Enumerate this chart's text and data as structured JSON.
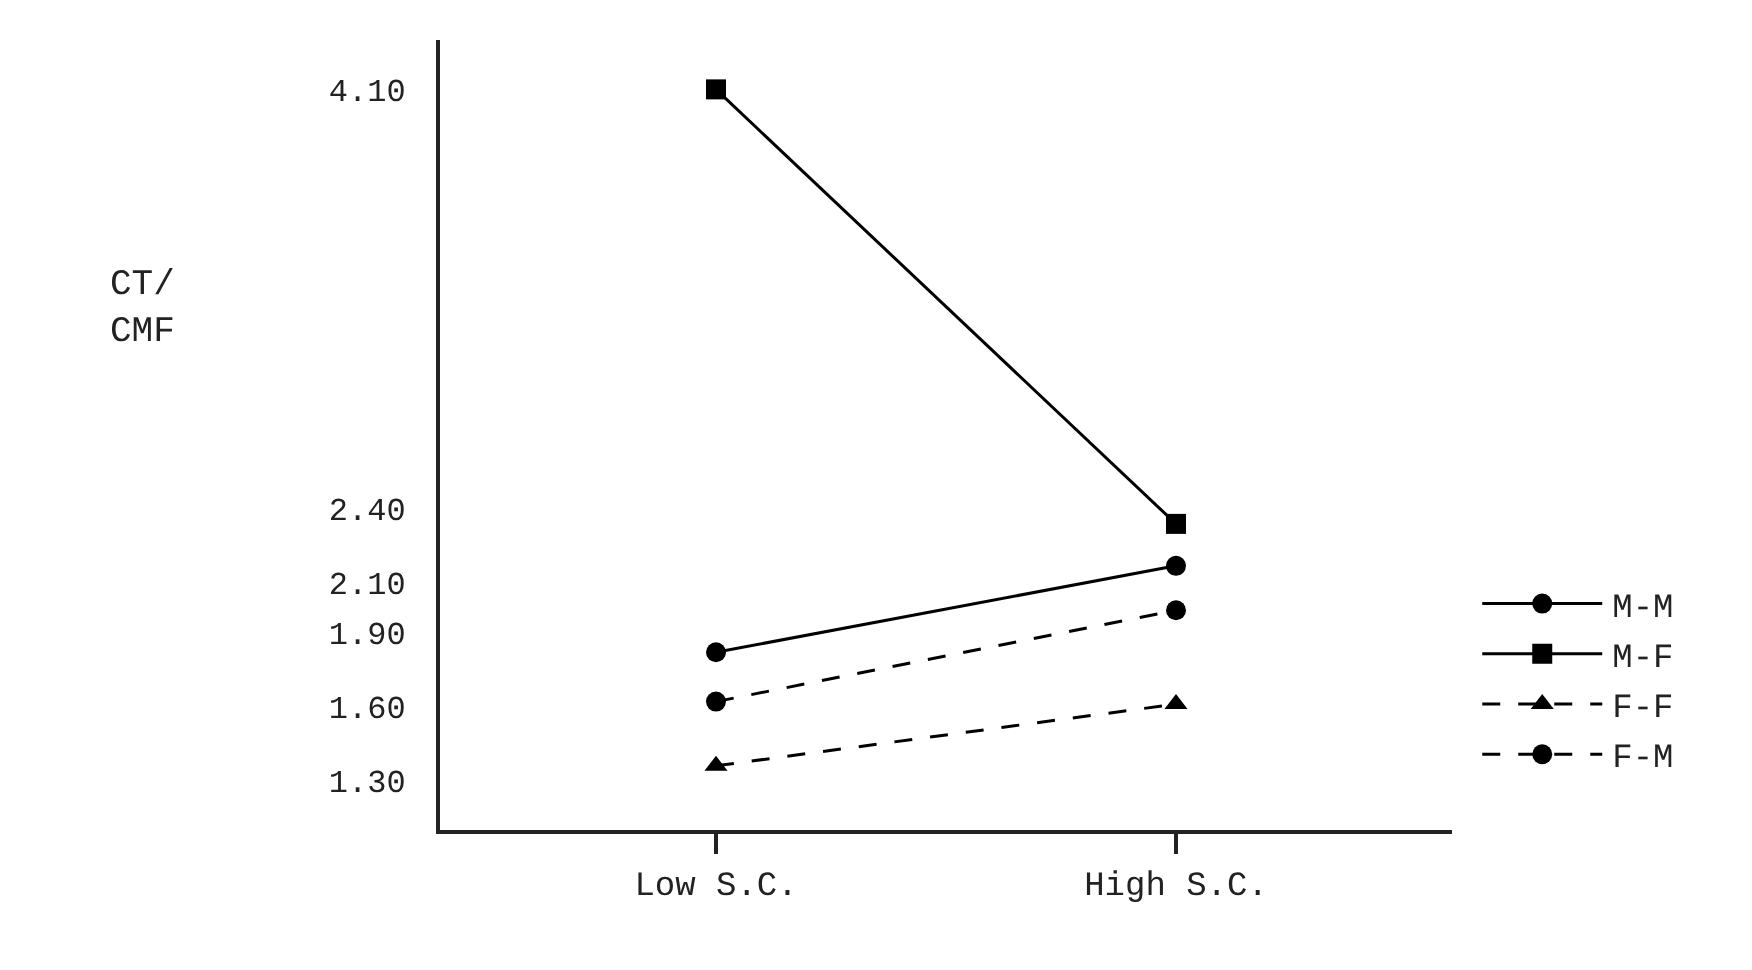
{
  "chart_data": {
    "type": "line",
    "annotations": [
      "CT/\nCMF"
    ],
    "categories": [
      "Low S.C.",
      "High S.C."
    ],
    "series": [
      {
        "name": "M-M",
        "color": "#000000",
        "values": [
          1.82,
          2.17
        ],
        "marker": "circle",
        "line_style": "solid"
      },
      {
        "name": "M-F",
        "color": "#000000",
        "values": [
          4.1,
          2.34
        ],
        "marker": "square",
        "line_style": "solid"
      },
      {
        "name": "F-F",
        "color": "#000000",
        "values": [
          1.36,
          1.61
        ],
        "marker": "triangle",
        "line_style": "dashed"
      },
      {
        "name": "F-M",
        "color": "#000000",
        "values": [
          1.62,
          1.99
        ],
        "marker": "circle",
        "line_style": "dashed"
      }
    ],
    "ylim": [
      1.1,
      4.3
    ],
    "yticks": [
      {
        "value": 1.3,
        "label": "1.30"
      },
      {
        "value": 1.6,
        "label": "1.60"
      },
      {
        "value": 1.9,
        "label": "1.90"
      },
      {
        "value": 2.1,
        "label": "2.10"
      },
      {
        "value": 2.4,
        "label": "2.40"
      },
      {
        "value": 4.1,
        "label": "4.10"
      }
    ],
    "legend": "bottom right"
  }
}
